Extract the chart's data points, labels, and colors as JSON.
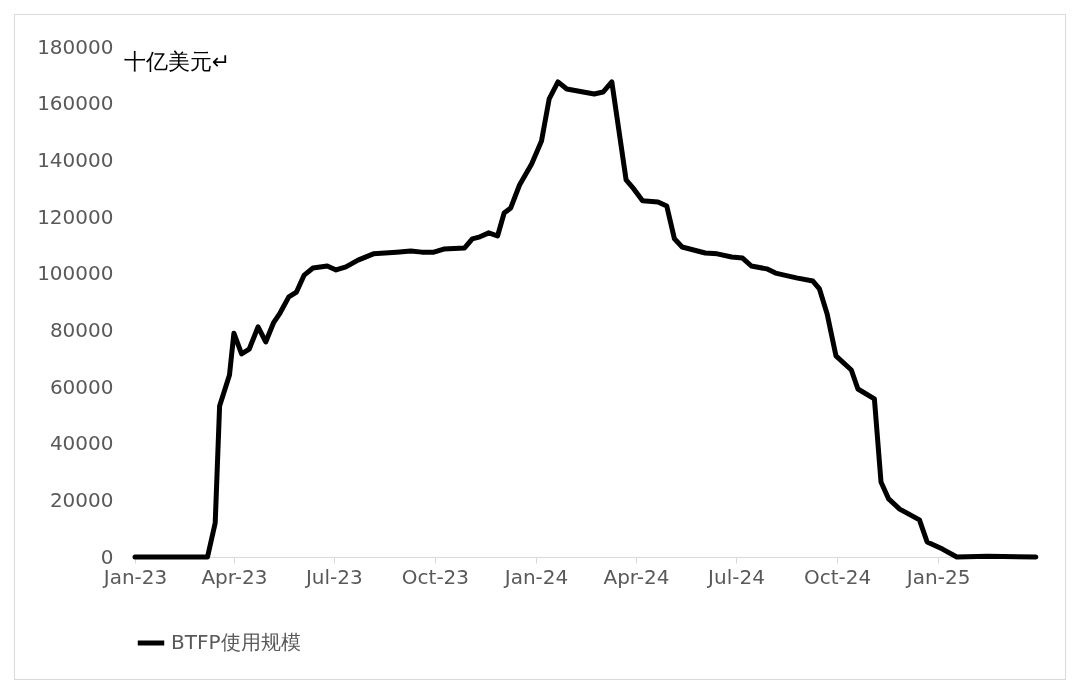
{
  "chart_data": {
    "type": "line",
    "ylabel": "十亿美元↵",
    "x": [
      "2023-01-01",
      "2023-03-05",
      "2023-03-08",
      "2023-03-15",
      "2023-03-19",
      "2023-03-28",
      "2023-04-01",
      "2023-04-08",
      "2023-04-15",
      "2023-04-23",
      "2023-04-30",
      "2023-05-07",
      "2023-05-13",
      "2023-05-21",
      "2023-05-28",
      "2023-06-04",
      "2023-06-12",
      "2023-06-25",
      "2023-07-03",
      "2023-07-12",
      "2023-07-23",
      "2023-08-06",
      "2023-08-27",
      "2023-09-09",
      "2023-09-19",
      "2023-09-30",
      "2023-10-09",
      "2023-10-28",
      "2023-11-04",
      "2023-11-11",
      "2023-11-19",
      "2023-11-27",
      "2023-12-03",
      "2023-12-09",
      "2023-12-17",
      "2023-12-28",
      "2024-01-06",
      "2024-01-13",
      "2024-01-21",
      "2024-01-29",
      "2024-02-23",
      "2024-03-02",
      "2024-03-10",
      "2024-03-23",
      "2024-03-30",
      "2024-04-07",
      "2024-04-21",
      "2024-04-29",
      "2024-05-06",
      "2024-05-13",
      "2024-06-03",
      "2024-06-14",
      "2024-06-27",
      "2024-07-07",
      "2024-07-15",
      "2024-07-29",
      "2024-08-06",
      "2024-08-25",
      "2024-09-09",
      "2024-09-15",
      "2024-09-22",
      "2024-09-30",
      "2024-10-14",
      "2024-10-20",
      "2024-11-04",
      "2024-11-10",
      "2024-11-17",
      "2024-11-27",
      "2024-12-15",
      "2024-12-22",
      "2025-01-05",
      "2025-01-18",
      "2025-02-15",
      "2025-03-31"
    ],
    "series": [
      {
        "name": "BTFP使用规模",
        "color": "#000000",
        "values": [
          0,
          0,
          0,
          12000,
          53300,
          64200,
          79000,
          71700,
          73400,
          81200,
          75900,
          82600,
          86100,
          91800,
          93500,
          99500,
          102000,
          102700,
          101300,
          102400,
          104800,
          107000,
          107600,
          108000,
          107600,
          107600,
          108700,
          109100,
          112300,
          113000,
          114400,
          113300,
          121400,
          123200,
          131300,
          138700,
          146800,
          161700,
          167700,
          165200,
          163400,
          164100,
          167700,
          133100,
          129900,
          125700,
          125300,
          123900,
          112300,
          109400,
          107300,
          107000,
          105900,
          105500,
          102700,
          101700,
          100200,
          98500,
          97400,
          94600,
          85800,
          71000,
          66000,
          59300,
          55800,
          26500,
          20500,
          16900,
          13100,
          5300,
          2800,
          0,
          300,
          0
        ]
      }
    ],
    "xlim": [
      "2023-01-01",
      "2025-04-01"
    ],
    "xticks": [
      {
        "value": "2023-01-01",
        "label": "Jan-23"
      },
      {
        "value": "2023-04-01",
        "label": "Apr-23"
      },
      {
        "value": "2023-07-01",
        "label": "Jul-23"
      },
      {
        "value": "2023-10-01",
        "label": "Oct-23"
      },
      {
        "value": "2024-01-01",
        "label": "Jan-24"
      },
      {
        "value": "2024-04-01",
        "label": "Apr-24"
      },
      {
        "value": "2024-07-01",
        "label": "Jul-24"
      },
      {
        "value": "2024-10-01",
        "label": "Oct-24"
      },
      {
        "value": "2025-01-01",
        "label": "Jan-25"
      }
    ],
    "ylim": [
      0,
      180000
    ],
    "yticks": [
      0,
      20000,
      40000,
      60000,
      80000,
      100000,
      120000,
      140000,
      160000,
      180000
    ],
    "grid": false,
    "legend": "bottom",
    "marker": "none",
    "line_style": "solid"
  }
}
